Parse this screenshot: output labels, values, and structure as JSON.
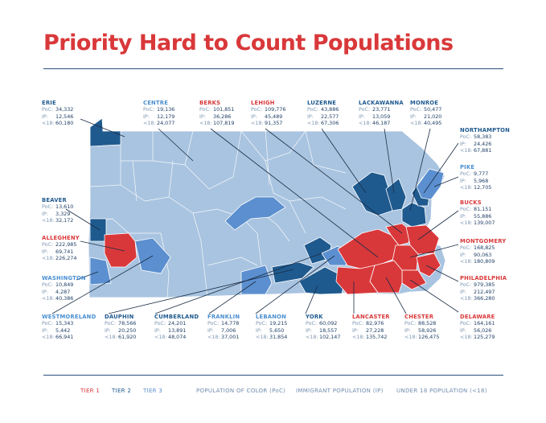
{
  "title": "Priority Hard to Count Populations",
  "colors": {
    "tier1": "#d9383a",
    "tier2": "#1f5a8f",
    "tier3": "#5b8fcf",
    "base": "#a9c4e0",
    "border": "#ffffff"
  },
  "counties": [
    {
      "id": "erie",
      "name": "ERIE",
      "tier": 2,
      "poc": "34,332",
      "ip": "12,546",
      "u18": "60,180"
    },
    {
      "id": "centre",
      "name": "CENTRE",
      "tier": 3,
      "poc": "19,136",
      "ip": "12,179",
      "u18": "24,077"
    },
    {
      "id": "berks",
      "name": "BERKS",
      "tier": 1,
      "poc": "101,851",
      "ip": "36,286",
      "u18": "107,819"
    },
    {
      "id": "lehigh",
      "name": "LEHIGH",
      "tier": 1,
      "poc": "109,776",
      "ip": "45,489",
      "u18": "91,357"
    },
    {
      "id": "luzerne",
      "name": "LUZERNE",
      "tier": 2,
      "poc": "43,886",
      "ip": "22,577",
      "u18": "67,306"
    },
    {
      "id": "lackawanna",
      "name": "LACKAWANNA",
      "tier": 2,
      "poc": "23,771",
      "ip": "13,059",
      "u18": "46,187"
    },
    {
      "id": "monroe",
      "name": "MONROE",
      "tier": 2,
      "poc": "50,477",
      "ip": "21,020",
      "u18": "40,495"
    },
    {
      "id": "northampton",
      "name": "NORTHAMPTON",
      "tier": 2,
      "poc": "58,383",
      "ip": "24,426",
      "u18": "67,881"
    },
    {
      "id": "pike",
      "name": "PIKE",
      "tier": 3,
      "poc": "9,777",
      "ip": "5,968",
      "u18": "12,705"
    },
    {
      "id": "bucks",
      "name": "BUCKS",
      "tier": 1,
      "poc": "81,151",
      "ip": "55,886",
      "u18": "139,007"
    },
    {
      "id": "montgomery",
      "name": "MONTGOMERY",
      "tier": 1,
      "poc": "168,825",
      "ip": "90,063",
      "u18": "180,809"
    },
    {
      "id": "philadelphia",
      "name": "PHILADELPHIA",
      "tier": 1,
      "poc": "979,385",
      "ip": "212,497",
      "u18": "366,280"
    },
    {
      "id": "delaware",
      "name": "DELAWARE",
      "tier": 1,
      "poc": "164,161",
      "ip": "56,026",
      "u18": "125,279"
    },
    {
      "id": "chester",
      "name": "CHESTER",
      "tier": 1,
      "poc": "88,528",
      "ip": "58,926",
      "u18": "126,475"
    },
    {
      "id": "lancaster",
      "name": "LANCASTER",
      "tier": 1,
      "poc": "82,976",
      "ip": "27,228",
      "u18": "135,742"
    },
    {
      "id": "york",
      "name": "YORK",
      "tier": 2,
      "poc": "60,092",
      "ip": "18,557",
      "u18": "102,147"
    },
    {
      "id": "lebanon",
      "name": "LEBANON",
      "tier": 3,
      "poc": "19,215",
      "ip": "5,650",
      "u18": "31,854"
    },
    {
      "id": "franklin",
      "name": "FRANKLIN",
      "tier": 3,
      "poc": "14,778",
      "ip": "7,006",
      "u18": "37,001"
    },
    {
      "id": "cumberland",
      "name": "CUMBERLAND",
      "tier": 2,
      "poc": "24,201",
      "ip": "13,891",
      "u18": "48,074"
    },
    {
      "id": "dauphin",
      "name": "DAUPHIN",
      "tier": 2,
      "poc": "78,566",
      "ip": "20,250",
      "u18": "61,920"
    },
    {
      "id": "westmoreland",
      "name": "WESTMORELAND",
      "tier": 3,
      "poc": "15,343",
      "ip": "5,442",
      "u18": "66,941"
    },
    {
      "id": "washington",
      "name": "WASHINGTON",
      "tier": 3,
      "poc": "10,849",
      "ip": "4,287",
      "u18": "40,386"
    },
    {
      "id": "allegheny",
      "name": "ALLEGHENY",
      "tier": 1,
      "poc": "222,985",
      "ip": "69,741",
      "u18": "226,274"
    },
    {
      "id": "beaver",
      "name": "BEAVER",
      "tier": 2,
      "poc": "13,610",
      "ip": "3,329",
      "u18": "32,172"
    }
  ],
  "labels": {
    "poc": "PoC:",
    "ip": "IP:",
    "u18": "<18:"
  },
  "legend": {
    "tier1": "TIER 1",
    "tier2": "TIER 2",
    "tier3": "TIER 3",
    "poc": "POPULATION OF COLOR (PoC)",
    "ip": "IMMIGRANT POPULATION (IP)",
    "u18": "UNDER 18 POPULATION (<18)"
  }
}
